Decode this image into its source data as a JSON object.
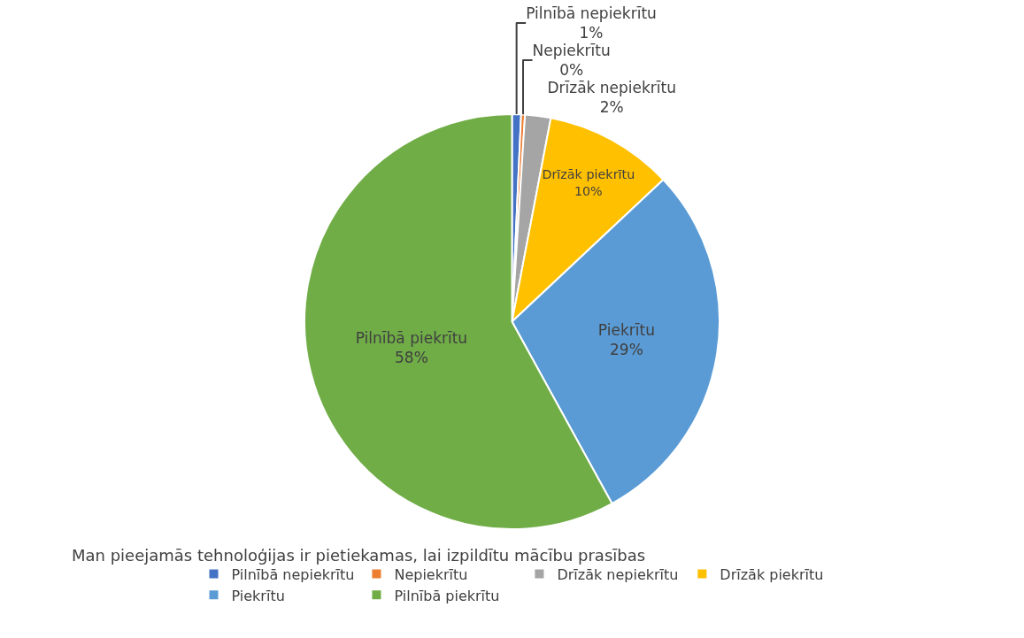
{
  "chart_data": {
    "type": "pie",
    "title": "Man pieejamās tehnoloģijas ir pietiekamas, lai izpildītu mācību prasības",
    "categories": [
      "Pilnībā nepiekrītu",
      "Nepiekrītu",
      "Drīzāk nepiekrītu",
      "Drīzāk piekrītu",
      "Piekrītu",
      "Pilnībā piekrītu"
    ],
    "values": [
      0.7,
      0.3,
      2,
      10,
      29,
      58
    ],
    "value_labels": [
      "1%",
      "0%",
      "2%",
      "10%",
      "29%",
      "58%"
    ],
    "colors": [
      "#4472c4",
      "#ed7d31",
      "#a5a5a5",
      "#ffc000",
      "#5b9bd5",
      "#70ad47"
    ],
    "legend": "bottom"
  }
}
